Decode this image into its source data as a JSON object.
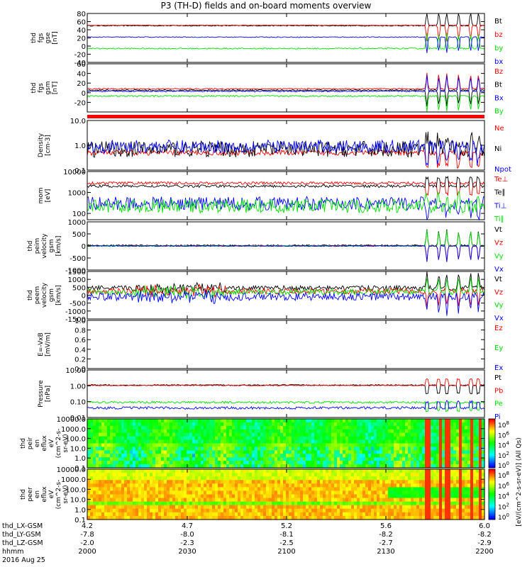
{
  "title": "P3 (TH-D) fields and on-board moments overview",
  "date": "2016 Aug 25",
  "colorbar_units": "[eV/(cm^2-s-sr-eV)] (All Qs)",
  "colors": {
    "red": "#ff0000",
    "green": "#00e000",
    "blue": "#0000ff",
    "black": "#000000"
  },
  "chart_data": {
    "type": "line",
    "x_axis": {
      "rows": [
        {
          "label": "thd_LX-GSM",
          "values": [
            "4.2",
            "4.7",
            "5.2",
            "5.6",
            "6.0"
          ]
        },
        {
          "label": "thd_LY-GSM",
          "values": [
            "-7.8",
            "-8.0",
            "-8.1",
            "-8.2",
            "-8.2"
          ]
        },
        {
          "label": "thd_LZ-GSM",
          "values": [
            "-2.0",
            "-2.3",
            "-2.5",
            "-2.7",
            "-2.9"
          ]
        },
        {
          "label": "hhmm",
          "values": [
            "2000",
            "2030",
            "2100",
            "2130",
            "2200"
          ]
        }
      ]
    },
    "panels": [
      {
        "id": "fgs-gse",
        "ylabel": [
          "thd",
          "fgs",
          "gse",
          "[nT]"
        ],
        "ylim": [
          -40,
          80
        ],
        "scale": "linear",
        "ticks": [
          "80",
          "60",
          "40",
          "20",
          "0",
          "-20",
          "-40"
        ],
        "tick_values": [
          80,
          60,
          40,
          20,
          0,
          -20,
          -40
        ],
        "series": [
          {
            "name": "Bt",
            "color": "#000000",
            "level": 50,
            "noise": 1.2
          },
          {
            "name": "bz",
            "color": "#ff0000",
            "level": 51,
            "noise": 0.8
          },
          {
            "name": "by",
            "color": "#00e000",
            "level": -6,
            "noise": 1.5
          },
          {
            "name": "bx",
            "color": "#0000ff",
            "level": 22,
            "noise": 1.0
          }
        ]
      },
      {
        "id": "fgs-gsm",
        "ylabel": [
          "thd",
          "fgs",
          "gsm",
          "[nT]"
        ],
        "ylim": [
          -40,
          60
        ],
        "scale": "linear",
        "ticks": [
          "60",
          "40",
          "20",
          "0",
          "-20"
        ],
        "tick_values": [
          60,
          40,
          20,
          0,
          -20
        ],
        "series": [
          {
            "name": "Bz",
            "color": "#ff0000",
            "level": 8,
            "noise": 1.2
          },
          {
            "name": "Bt",
            "color": "#000000",
            "level": 5,
            "noise": 1.5
          },
          {
            "name": "Bx",
            "color": "#0000ff",
            "level": 3,
            "noise": 1.2
          },
          {
            "name": "By",
            "color": "#00e000",
            "level": -7,
            "noise": 1.5
          }
        ]
      },
      {
        "id": "density",
        "ylabel": [
          "Density",
          "[cm-3]"
        ],
        "ylim": [
          0.1,
          10
        ],
        "scale": "log",
        "ticks": [
          "10.0",
          "1.0",
          "0.1"
        ],
        "tick_values": [
          10,
          1,
          0.1
        ],
        "series": [
          {
            "name": "Ne",
            "color": "#ff0000",
            "level": 0.5,
            "noise": 0.08
          },
          {
            "name": "Ni",
            "color": "#000000",
            "level": 0.7,
            "noise": 0.25
          },
          {
            "name": "Npot",
            "color": "#0000ff",
            "level": 0.9,
            "noise": 0.2
          }
        ]
      },
      {
        "id": "temperature",
        "ylabel": [
          "mom",
          "[eV]"
        ],
        "ylim": [
          50,
          10000
        ],
        "scale": "log",
        "ticks": [
          "10000",
          "1000",
          "100"
        ],
        "tick_values": [
          10000,
          1000,
          100
        ],
        "series": [
          {
            "name": "Te⊥",
            "color": "#ff0000",
            "level": 2800,
            "noise": 0.05
          },
          {
            "name": "Te∥",
            "color": "#000000",
            "level": 2000,
            "noise": 0.05
          },
          {
            "name": "Ti⊥",
            "color": "#0000ff",
            "level": 300,
            "noise": 0.25
          },
          {
            "name": "Ti∥",
            "color": "#00e000",
            "level": 220,
            "noise": 0.25
          }
        ]
      },
      {
        "id": "peim-velocity",
        "ylabel": [
          "thd",
          "peim",
          "velocity",
          "gsm",
          "[km/s]"
        ],
        "ylim": [
          -1000,
          1000
        ],
        "scale": "linear",
        "ticks": [
          "1000",
          "500",
          "0",
          "-500",
          "-1000"
        ],
        "tick_values": [
          1000,
          500,
          0,
          -500,
          -1000
        ],
        "series": [
          {
            "name": "Vt",
            "color": "#000000",
            "level": 20,
            "noise": 30
          },
          {
            "name": "Vz",
            "color": "#ff0000",
            "level": 0,
            "noise": 25
          },
          {
            "name": "Vy",
            "color": "#00e000",
            "level": 0,
            "noise": 25
          },
          {
            "name": "Vx",
            "color": "#0000ff",
            "level": 0,
            "noise": 20
          }
        ]
      },
      {
        "id": "peem-velocity",
        "ylabel": [
          "thd",
          "peem",
          "velocity",
          "gsm",
          "[km/s]"
        ],
        "ylim": [
          -1500,
          1500
        ],
        "scale": "linear",
        "ticks": [
          "1500",
          "1000",
          "500",
          "0",
          "-500",
          "-1000",
          "-1500"
        ],
        "tick_values": [
          1500,
          1000,
          500,
          0,
          -500,
          -1000,
          -1500
        ],
        "series": [
          {
            "name": "Vt",
            "color": "#000000",
            "level": 450,
            "noise": 150
          },
          {
            "name": "Vz",
            "color": "#ff0000",
            "level": 250,
            "noise": 180
          },
          {
            "name": "Vy",
            "color": "#00e000",
            "level": 200,
            "noise": 180
          },
          {
            "name": "Vx",
            "color": "#0000ff",
            "level": -100,
            "noise": 250
          }
        ]
      },
      {
        "id": "efield",
        "ylabel": [
          "E=-VxB",
          "[mV/m]"
        ],
        "ylim": [
          0,
          1
        ],
        "scale": "linear",
        "ticks": [
          "1.0",
          "0.8",
          "0.6",
          "0.4",
          "0.2",
          "0.0"
        ],
        "tick_values": [
          1,
          0.8,
          0.6,
          0.4,
          0.2,
          0
        ],
        "series": [
          {
            "name": "Ez",
            "color": "#ff0000",
            "empty": true
          },
          {
            "name": "Ey",
            "color": "#00e000",
            "empty": true
          },
          {
            "name": "Ex",
            "color": "#0000ff",
            "empty": true
          }
        ]
      },
      {
        "id": "pressure",
        "ylabel": [
          "Pressure",
          "[nPa]"
        ],
        "ylim": [
          0.01,
          10
        ],
        "scale": "log",
        "ticks": [
          "10.00",
          "1.00",
          "0.10",
          "0.01"
        ],
        "tick_values": [
          10,
          1,
          0.1,
          0.01
        ],
        "series": [
          {
            "name": "Pt",
            "color": "#000000",
            "level": 1.1,
            "noise": 0.03
          },
          {
            "name": "Pb",
            "color": "#ff0000",
            "level": 1.05,
            "noise": 0.02
          },
          {
            "name": "Pe",
            "color": "#00e000",
            "level": 0.09,
            "noise": 0.05
          },
          {
            "name": "Pi",
            "color": "#0000ff",
            "level": 0.04,
            "noise": 0.06
          }
        ]
      },
      {
        "id": "peir-spectrogram",
        "type": "heatmap",
        "ylabel": [
          "thd",
          "peir",
          "en",
          "eflux",
          "eV",
          "(cm^2-s-",
          "sr-eV)"
        ],
        "ylim": [
          0.1,
          10000
        ],
        "scale": "log",
        "ticks": [
          "10000.0",
          "1000.0",
          "100.0",
          "10.0",
          "1.0",
          "0.1"
        ],
        "tick_values": [
          10000,
          1000,
          100,
          10,
          1,
          0.1
        ],
        "colorbar_ticks": [
          "10^8",
          "10^6",
          "10^4",
          "10^2",
          "10^0"
        ]
      },
      {
        "id": "peer-spectrogram",
        "type": "heatmap",
        "ylabel": [
          "thd",
          "peer",
          "en",
          "eflux",
          "eV",
          "(cm^2-s-",
          "sr-eV)"
        ],
        "ylim": [
          0.1,
          10000
        ],
        "scale": "log",
        "ticks": [
          "10000.0",
          "1000.0",
          "100.0",
          "10.0",
          "1.0",
          "0.1"
        ],
        "tick_values": [
          10000,
          1000,
          100,
          10,
          1,
          0.1
        ],
        "colorbar_ticks": [
          "10^8",
          "10^6",
          "10^4",
          "10^2",
          "10^0"
        ]
      }
    ]
  }
}
